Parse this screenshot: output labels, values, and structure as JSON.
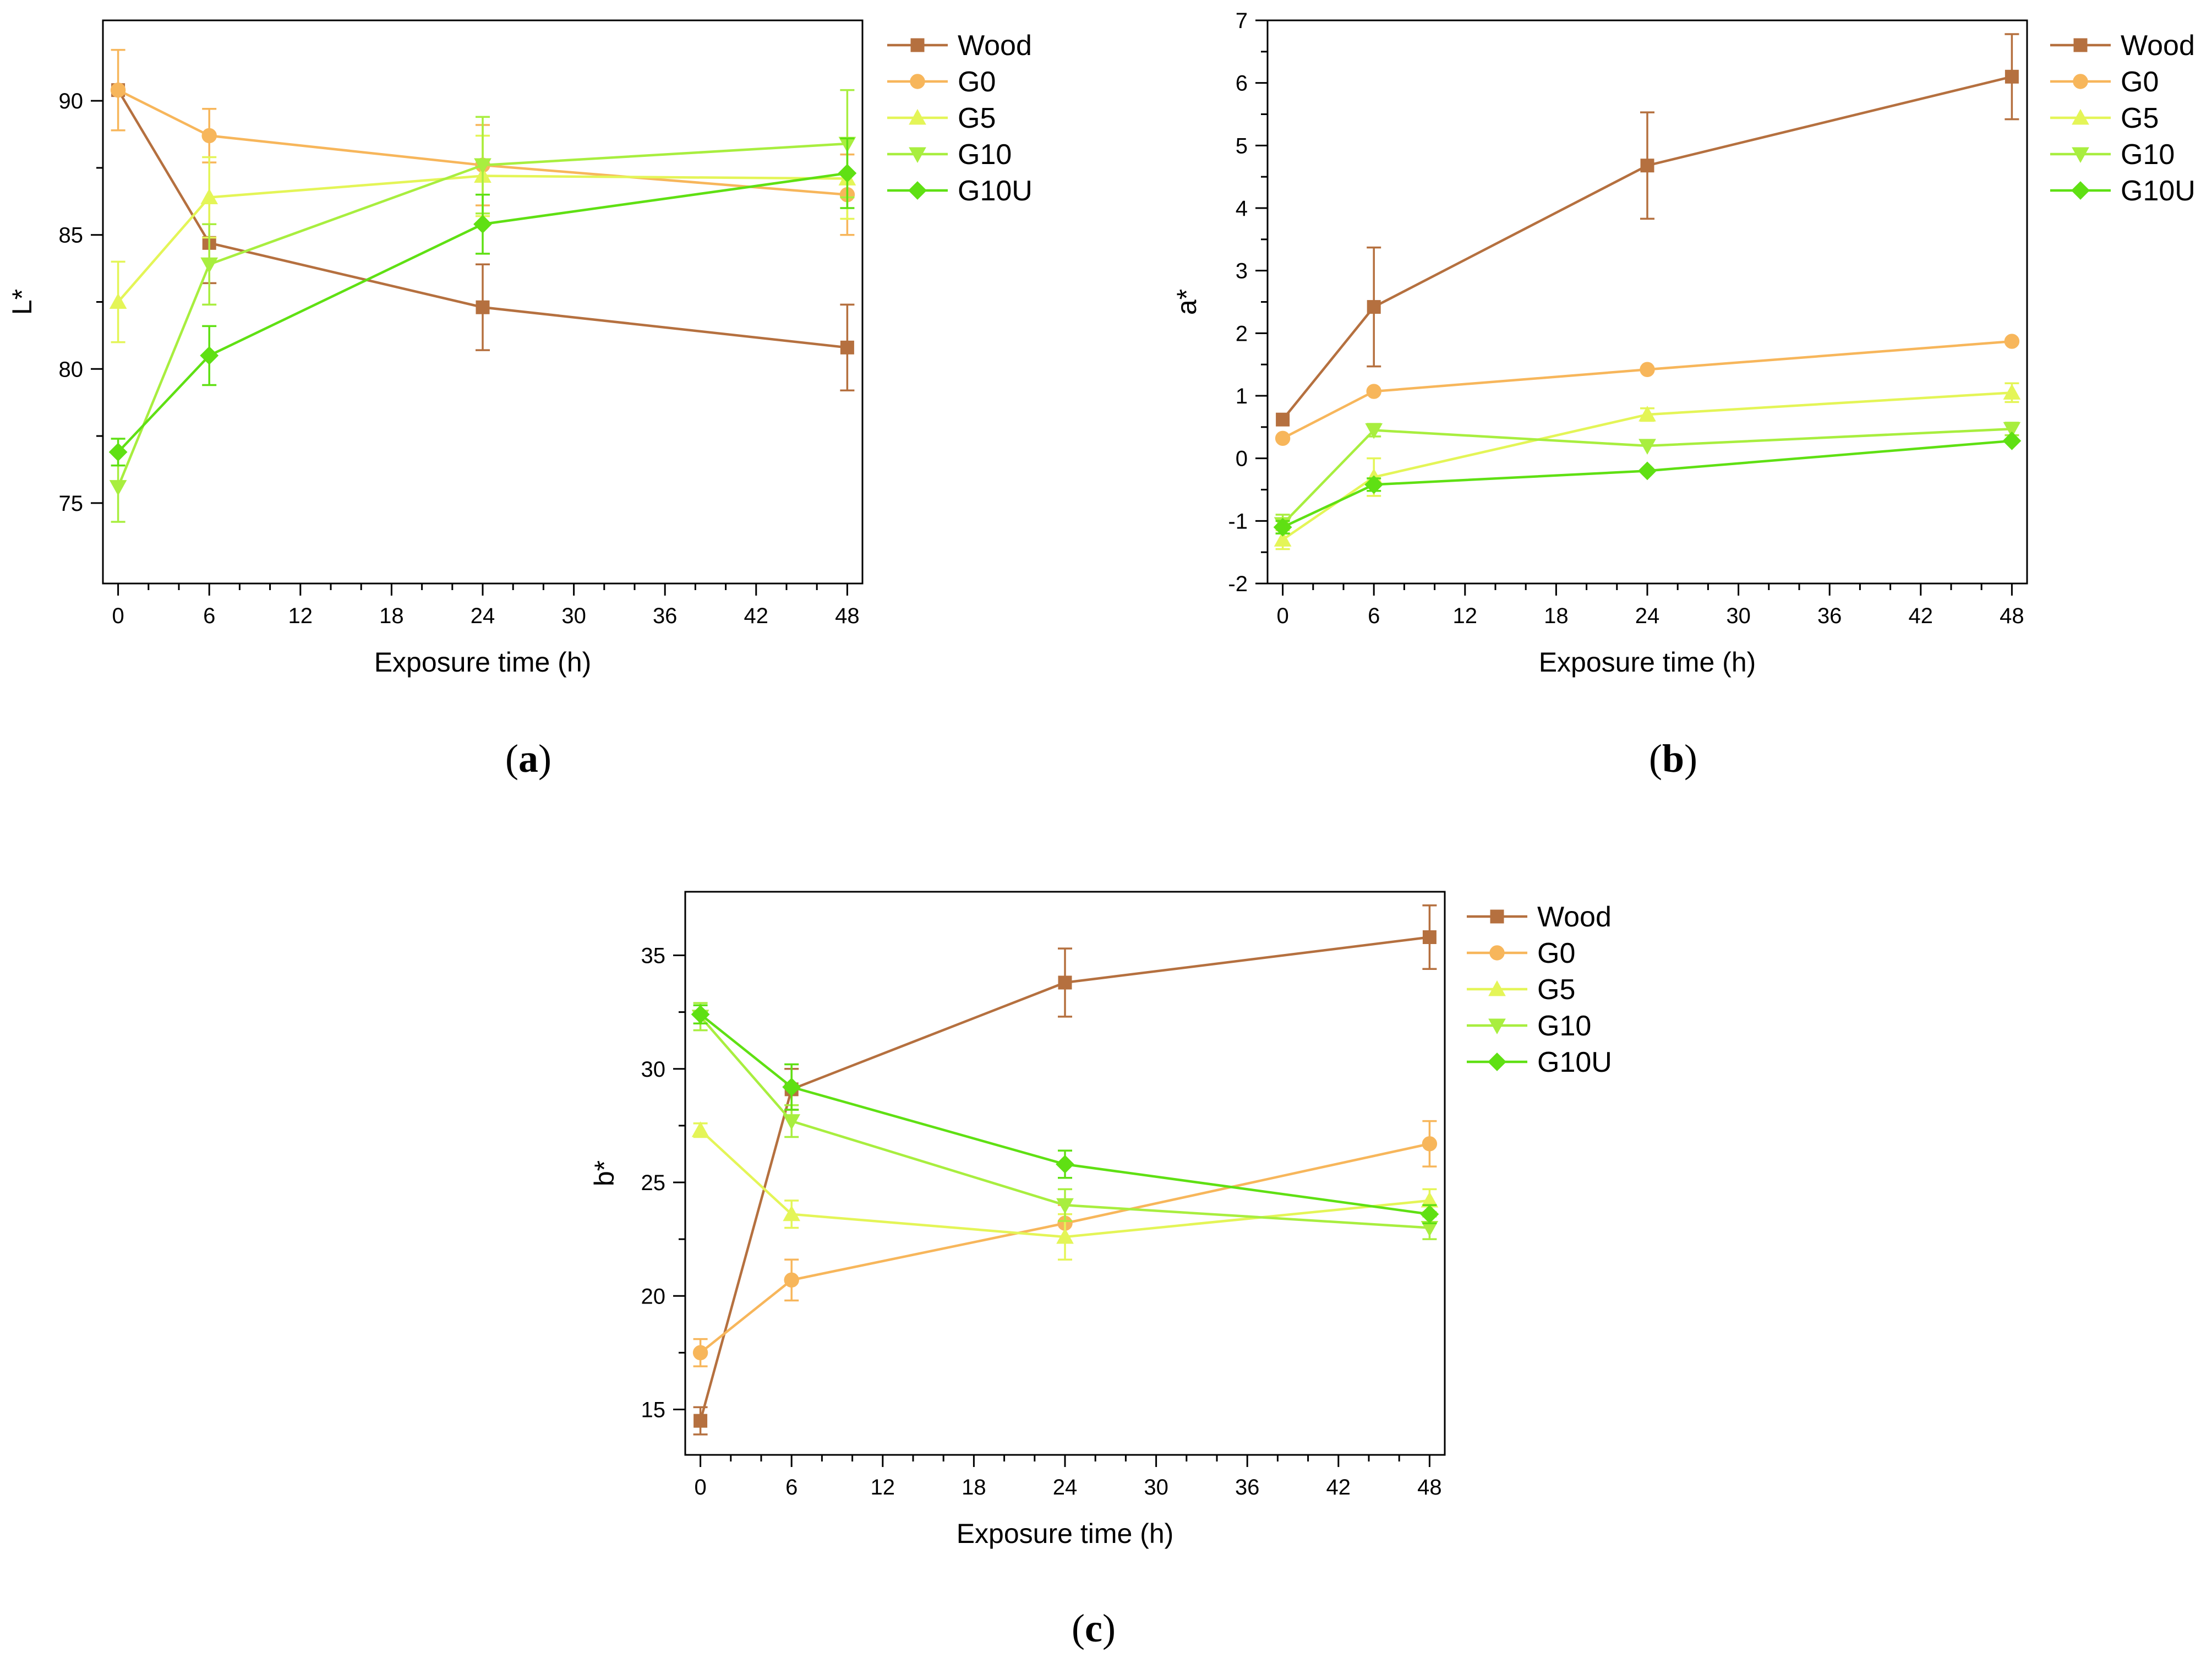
{
  "colors": {
    "Wood": "#b5703f",
    "G0": "#f7b65b",
    "G5": "#e4f557",
    "G10": "#a8ee3f",
    "G10U": "#5fe013"
  },
  "chart_data": [
    {
      "type": "line",
      "panel": "a",
      "caption_letter": "a",
      "xlabel": "Exposure time (h)",
      "ylabel": "L*",
      "xlim": [
        -1,
        49
      ],
      "ylim": [
        72,
        93
      ],
      "xticks": [
        0,
        6,
        12,
        18,
        24,
        30,
        36,
        42,
        48
      ],
      "yticks": [
        75,
        80,
        85,
        90
      ],
      "legend_position": "right",
      "x": [
        0,
        6,
        24,
        48
      ],
      "series": [
        {
          "name": "Wood",
          "marker": "square",
          "values": [
            90.4,
            84.7,
            82.3,
            80.8
          ],
          "errors": [
            0,
            1.5,
            1.6,
            1.6
          ]
        },
        {
          "name": "G0",
          "marker": "circle",
          "values": [
            90.4,
            88.7,
            87.6,
            86.5
          ],
          "errors": [
            1.5,
            1.0,
            1.5,
            1.5
          ]
        },
        {
          "name": "G5",
          "marker": "triangle-up",
          "values": [
            82.5,
            86.4,
            87.2,
            87.1
          ],
          "errors": [
            1.5,
            1.5,
            1.5,
            1.5
          ]
        },
        {
          "name": "G10",
          "marker": "triangle-down",
          "values": [
            75.6,
            83.9,
            87.6,
            88.4
          ],
          "errors": [
            1.3,
            1.5,
            1.8,
            2.0
          ]
        },
        {
          "name": "G10U",
          "marker": "diamond",
          "values": [
            76.9,
            80.5,
            85.4,
            87.3
          ],
          "errors": [
            0.5,
            1.1,
            1.1,
            1.3
          ]
        }
      ]
    },
    {
      "type": "line",
      "panel": "b",
      "caption_letter": "b",
      "xlabel": "Exposure time (h)",
      "ylabel": "a*",
      "xlim": [
        -1,
        49
      ],
      "ylim": [
        -2,
        7
      ],
      "xticks": [
        0,
        6,
        12,
        18,
        24,
        30,
        36,
        42,
        48
      ],
      "yticks": [
        -2,
        -1,
        0,
        1,
        2,
        3,
        4,
        5,
        6,
        7
      ],
      "legend_position": "right",
      "x": [
        0,
        6,
        24,
        48
      ],
      "series": [
        {
          "name": "Wood",
          "marker": "square",
          "values": [
            0.62,
            2.42,
            4.68,
            6.1
          ],
          "errors": [
            0,
            0.95,
            0.85,
            0.68
          ]
        },
        {
          "name": "G0",
          "marker": "circle",
          "values": [
            0.32,
            1.07,
            1.42,
            1.87
          ],
          "errors": [
            0,
            0,
            0,
            0
          ]
        },
        {
          "name": "G5",
          "marker": "triangle-up",
          "values": [
            -1.3,
            -0.3,
            0.7,
            1.05
          ],
          "errors": [
            0.15,
            0.3,
            0.1,
            0.15
          ]
        },
        {
          "name": "G10",
          "marker": "triangle-down",
          "values": [
            -1.05,
            0.45,
            0.2,
            0.47
          ],
          "errors": [
            0.15,
            0.1,
            0,
            0.1
          ]
        },
        {
          "name": "G10U",
          "marker": "diamond",
          "values": [
            -1.1,
            -0.42,
            -0.2,
            0.28
          ],
          "errors": [
            0.1,
            0.1,
            0,
            0
          ]
        }
      ]
    },
    {
      "type": "line",
      "panel": "c",
      "caption_letter": "c",
      "xlabel": "Exposure time (h)",
      "ylabel": "b*",
      "xlim": [
        -1,
        49
      ],
      "ylim": [
        13,
        37.8
      ],
      "xticks": [
        0,
        6,
        12,
        18,
        24,
        30,
        36,
        42,
        48
      ],
      "yticks": [
        15,
        20,
        25,
        30,
        35
      ],
      "legend_position": "right",
      "x": [
        0,
        6,
        24,
        48
      ],
      "series": [
        {
          "name": "Wood",
          "marker": "square",
          "values": [
            14.5,
            29.1,
            33.8,
            35.8
          ],
          "errors": [
            0.6,
            0.9,
            1.5,
            1.4
          ]
        },
        {
          "name": "G0",
          "marker": "circle",
          "values": [
            17.5,
            20.7,
            23.2,
            26.7
          ],
          "errors": [
            0.6,
            0.9,
            0.8,
            1.0
          ]
        },
        {
          "name": "G5",
          "marker": "triangle-up",
          "values": [
            27.3,
            23.6,
            22.6,
            24.2
          ],
          "errors": [
            0.3,
            0.6,
            1.0,
            0.5
          ]
        },
        {
          "name": "G10",
          "marker": "triangle-down",
          "values": [
            32.3,
            27.7,
            24.0,
            23.0
          ],
          "errors": [
            0.6,
            0.7,
            0.7,
            0.5
          ]
        },
        {
          "name": "G10U",
          "marker": "diamond",
          "values": [
            32.4,
            29.2,
            25.8,
            23.6
          ],
          "errors": [
            0.4,
            1.0,
            0.6,
            0.4
          ]
        }
      ]
    }
  ]
}
